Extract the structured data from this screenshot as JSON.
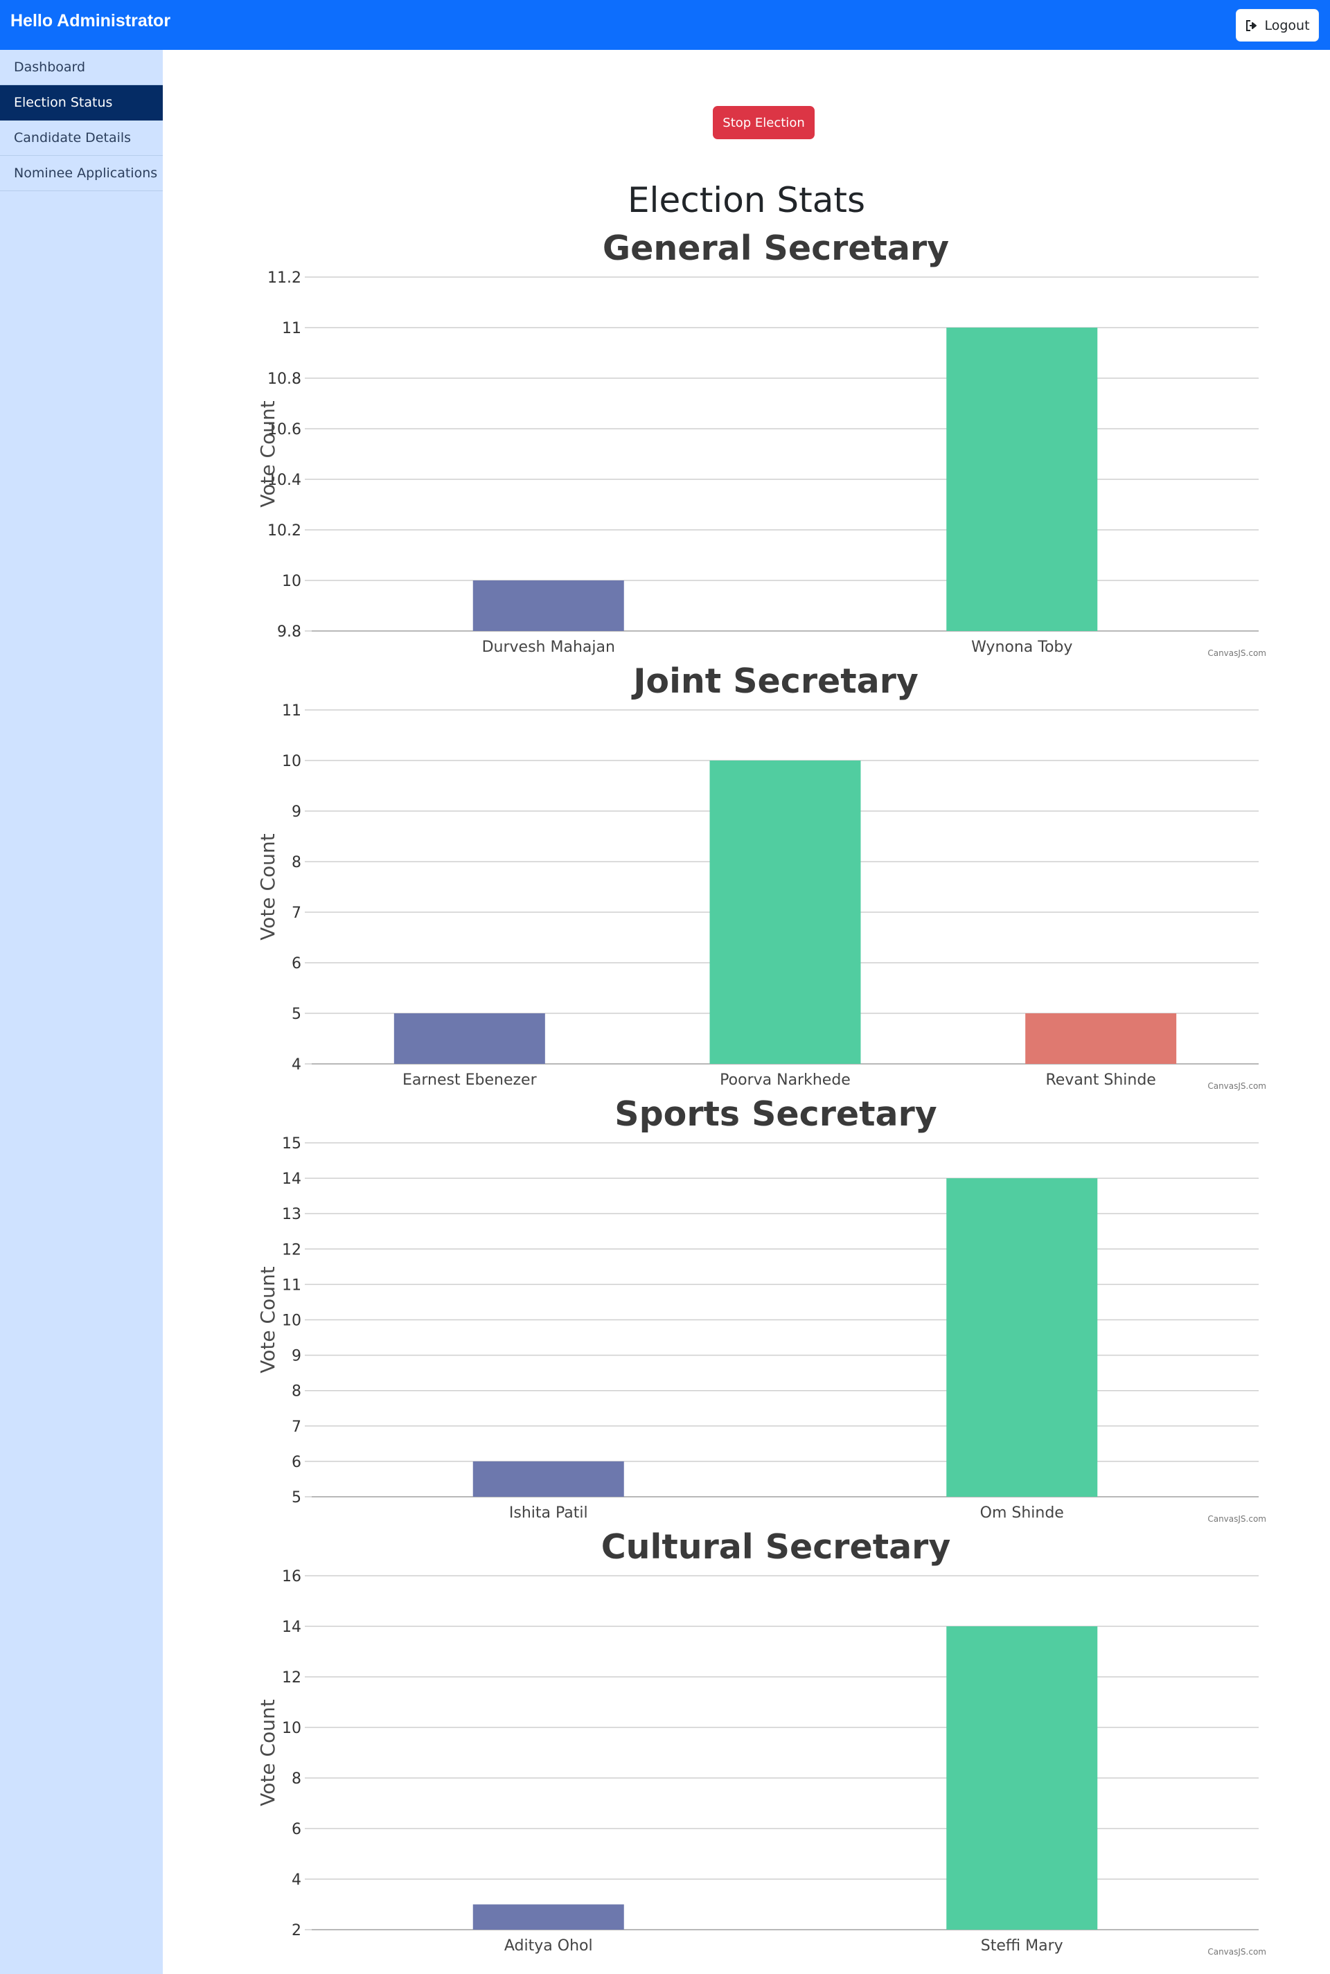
{
  "navbar": {
    "brand": "Hello Administrator",
    "logout_label": "Logout",
    "color": "#0d6efd"
  },
  "sidebar": {
    "items": [
      {
        "label": "Dashboard",
        "active": false
      },
      {
        "label": "Election Status",
        "active": true
      },
      {
        "label": "Candidate Details",
        "active": false
      },
      {
        "label": "Nominee Applications",
        "active": false
      }
    ]
  },
  "main": {
    "stop_button_label": "Stop Election",
    "title": "Election Stats"
  },
  "colors": {
    "series": [
      "#6d78ad",
      "#51cda0",
      "#df7970"
    ],
    "stop_button": "#dc3545"
  },
  "chart_data": [
    {
      "type": "bar",
      "title": "General Secretary",
      "ylabel": "Vote Count",
      "xlabel": "",
      "categories": [
        "Durvesh Mahajan",
        "Wynona Toby"
      ],
      "values": [
        10,
        11
      ],
      "ylim": [
        9.8,
        11.2
      ],
      "yticks": [
        "9.8",
        "10",
        "10.2",
        "10.4",
        "10.6",
        "10.8",
        "11",
        "11.2"
      ],
      "credit": "CanvasJS.com"
    },
    {
      "type": "bar",
      "title": "Joint Secretary",
      "ylabel": "Vote Count",
      "xlabel": "",
      "categories": [
        "Earnest Ebenezer",
        "Poorva Narkhede",
        "Revant Shinde"
      ],
      "values": [
        5,
        10,
        5
      ],
      "ylim": [
        4,
        11
      ],
      "yticks": [
        "4",
        "5",
        "6",
        "7",
        "8",
        "9",
        "10",
        "11"
      ],
      "credit": "CanvasJS.com"
    },
    {
      "type": "bar",
      "title": "Sports Secretary",
      "ylabel": "Vote Count",
      "xlabel": "",
      "categories": [
        "Ishita Patil",
        "Om Shinde"
      ],
      "values": [
        6,
        14
      ],
      "ylim": [
        5,
        15
      ],
      "yticks": [
        "5",
        "6",
        "7",
        "8",
        "9",
        "10",
        "11",
        "12",
        "13",
        "14",
        "15"
      ],
      "credit": "CanvasJS.com"
    },
    {
      "type": "bar",
      "title": "Cultural Secretary",
      "ylabel": "Vote Count",
      "xlabel": "",
      "categories": [
        "Aditya Ohol",
        "Steffi Mary"
      ],
      "values": [
        3,
        14
      ],
      "ylim": [
        2,
        16
      ],
      "yticks": [
        "2",
        "4",
        "6",
        "8",
        "10",
        "12",
        "14",
        "16"
      ],
      "credit": "CanvasJS.com"
    }
  ]
}
